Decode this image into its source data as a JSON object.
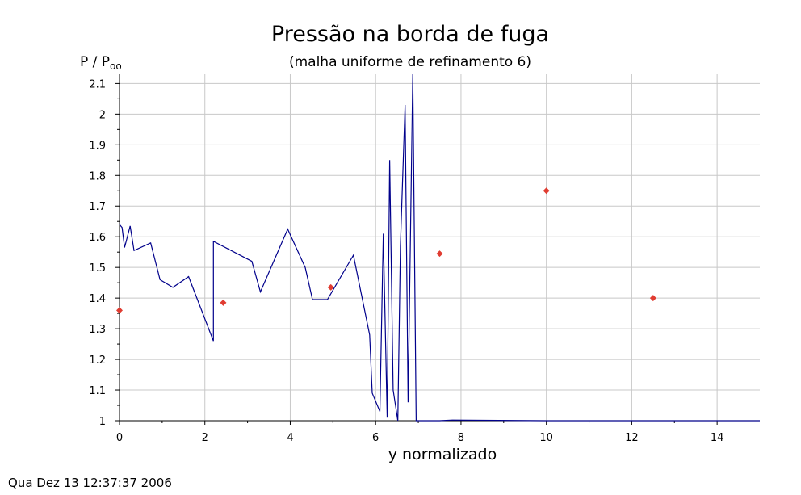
{
  "chart_data": {
    "type": "line",
    "title": "Pressão na borda de fuga",
    "subtitle": "(malha uniforme de refinamento 6)",
    "ylabel_main": "P / P",
    "ylabel_sub": "oo",
    "xlabel": "y normalizado",
    "xlim": [
      0,
      15
    ],
    "ylim": [
      1,
      2.13
    ],
    "x_ticks": [
      0,
      2,
      4,
      6,
      8,
      10,
      12,
      14
    ],
    "y_ticks": [
      1,
      1.1,
      1.2,
      1.3,
      1.4,
      1.5,
      1.6,
      1.7,
      1.8,
      1.9,
      2,
      2.1
    ],
    "grid": true,
    "colors": {
      "line": "#00008b",
      "markers": "#e03c31",
      "grid": "#c8c8c8"
    },
    "series": [
      {
        "style": "line",
        "x": [
          0,
          0.06,
          0.12,
          0.25,
          0.34,
          0.73,
          0.95,
          1.25,
          1.62,
          2.2,
          2.2,
          3.1,
          3.3,
          3.94,
          4.35,
          4.52,
          4.87,
          5.48,
          5.86,
          5.92,
          6.1,
          6.18,
          6.27,
          6.33,
          6.41,
          6.52,
          6.58,
          6.69,
          6.76,
          6.87,
          6.95,
          7.0,
          7.5,
          7.8,
          10,
          12.5,
          15
        ],
        "y": [
          1.64,
          1.63,
          1.565,
          1.635,
          1.555,
          1.58,
          1.46,
          1.435,
          1.47,
          1.26,
          1.585,
          1.52,
          1.42,
          1.625,
          1.5,
          1.395,
          1.395,
          1.54,
          1.28,
          1.09,
          1.03,
          1.61,
          1.01,
          1.85,
          1.1,
          1.0,
          1.57,
          2.03,
          1.06,
          2.13,
          1.0,
          1.0,
          1.0,
          1.002,
          1.0,
          1.0,
          1.0
        ]
      },
      {
        "style": "markers",
        "x": [
          0,
          2.43,
          4.95,
          7.5,
          10.0,
          12.5
        ],
        "y": [
          1.36,
          1.385,
          1.435,
          1.545,
          1.75,
          1.4
        ]
      }
    ]
  },
  "footer": {
    "timestamp": "Qua Dez 13 12:37:37 2006"
  }
}
